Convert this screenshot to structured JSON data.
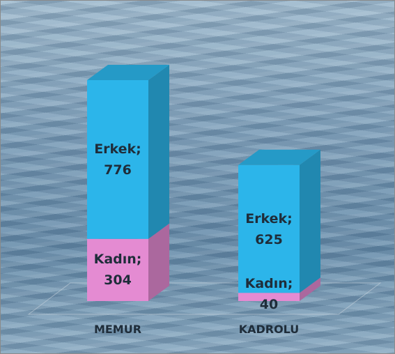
{
  "chart_data": {
    "type": "bar",
    "stacked": true,
    "categories": [
      "MEMUR",
      "KADROLU"
    ],
    "series": [
      {
        "color": "#e48bd2",
        "values": [
          304,
          40
        ],
        "value_labels": [
          "Kadın; 304",
          "Kadın; 40"
        ]
      },
      {
        "color": "#2cb5ea",
        "values": [
          776,
          625
        ],
        "value_labels": [
          "Erkek; 776",
          "Erkek; 625"
        ]
      }
    ]
  }
}
